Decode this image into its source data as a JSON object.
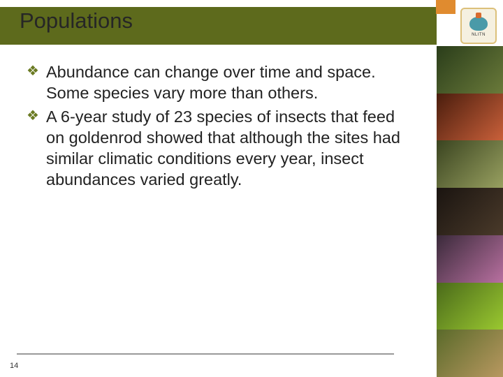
{
  "slide": {
    "title": "Populations",
    "bullets": [
      "Abundance can change over time and space. Some species vary more than others.",
      "A 6-year study of 23 species of insects that feed on goldenrod showed that although the sites had similar climatic conditions every year, insect abundances varied greatly."
    ],
    "pageNumber": "14",
    "logoLabel": "NLITN"
  },
  "style": {
    "titleBandColor": "#5d6a1c",
    "accentOrange": "#e08b2f",
    "bulletColor": "#6a7a22",
    "textColor": "#222222",
    "titleFontSize": 31,
    "bodyFontSize": 23.5,
    "background": "#ffffff"
  }
}
